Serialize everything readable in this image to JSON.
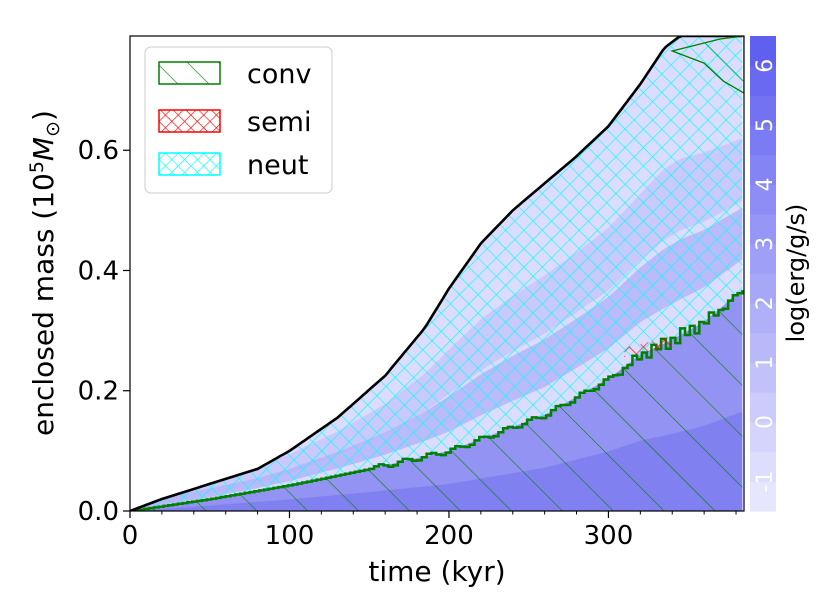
{
  "chart_data": {
    "type": "area",
    "xlabel": "time (kyr)",
    "ylabel_text": "enclosed mass (10",
    "ylabel_sup": "5",
    "ylabel_unit": "M",
    "ylabel_sub": "⊙",
    "ylabel_close": ")",
    "xlim": [
      0,
      385
    ],
    "ylim": [
      0.0,
      0.79
    ],
    "xticks": [
      {
        "value": 0,
        "label": "0"
      },
      {
        "value": 100,
        "label": "100"
      },
      {
        "value": 200,
        "label": "200"
      },
      {
        "value": 300,
        "label": "300"
      }
    ],
    "yticks": [
      {
        "value": 0.0,
        "label": "0.0"
      },
      {
        "value": 0.2,
        "label": "0.2"
      },
      {
        "value": 0.4,
        "label": "0.4"
      },
      {
        "value": 0.6,
        "label": "0.6"
      }
    ],
    "legend": {
      "placement": "top-left",
      "entries": [
        {
          "label": "conv",
          "color": "#008000",
          "hatch": "diagonal"
        },
        {
          "label": "semi",
          "color": "#ff0000",
          "hatch": "cross"
        },
        {
          "label": "neut",
          "color": "#00ffff",
          "hatch": "cross"
        }
      ]
    },
    "colorbar": {
      "label": "log(erg/g/s)",
      "range": [
        -1.5,
        6.5
      ],
      "ticks": [
        {
          "value": -1,
          "label": "-1"
        },
        {
          "value": 0,
          "label": "0"
        },
        {
          "value": 1,
          "label": "1"
        },
        {
          "value": 2,
          "label": "2"
        },
        {
          "value": 3,
          "label": "3"
        },
        {
          "value": 4,
          "label": "4"
        },
        {
          "value": 5,
          "label": "5"
        },
        {
          "value": 6,
          "label": "6"
        }
      ],
      "color_low": "#e6e6ff",
      "color_high": "#6060f0"
    },
    "series": [
      {
        "name": "total mass",
        "x": [
          0,
          20,
          50,
          80,
          100,
          130,
          160,
          185,
          200,
          220,
          240,
          260,
          280,
          300,
          320,
          335,
          345,
          385
        ],
        "y": [
          0.0,
          0.02,
          0.045,
          0.07,
          0.1,
          0.155,
          0.225,
          0.305,
          0.37,
          0.445,
          0.5,
          0.545,
          0.59,
          0.64,
          0.71,
          0.77,
          0.79,
          0.79
        ]
      },
      {
        "name": "convective core boundary",
        "x": [
          0,
          50,
          100,
          150,
          200,
          230,
          260,
          300,
          320,
          340,
          360,
          385
        ],
        "y": [
          0.0,
          0.02,
          0.043,
          0.07,
          0.1,
          0.13,
          0.16,
          0.22,
          0.26,
          0.285,
          0.315,
          0.37
        ]
      },
      {
        "name": "semiconvection",
        "x": [
          310,
          320,
          330,
          340
        ],
        "y": [
          0.26,
          0.265,
          0.272,
          0.278
        ]
      }
    ]
  }
}
